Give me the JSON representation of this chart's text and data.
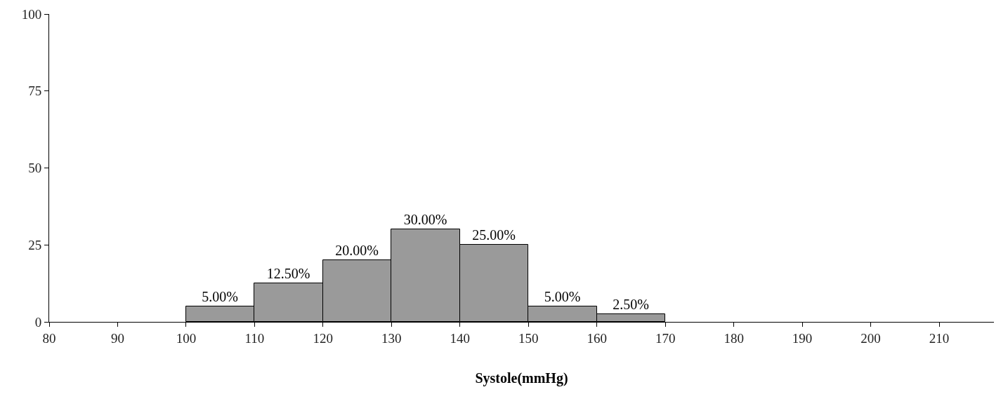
{
  "chart_data": {
    "type": "histogram",
    "xlabel": "Systole(mmHg)",
    "bins": [
      100,
      110,
      120,
      130,
      140,
      150,
      160,
      170
    ],
    "values": [
      5,
      12.5,
      20,
      30,
      25,
      5,
      2.5
    ],
    "value_labels": [
      "5.00%",
      "12.50%",
      "20.00%",
      "30.00%",
      "25.00%",
      "5.00%",
      "2.50%"
    ],
    "color": "#9a9a9a",
    "xlim": [
      80,
      218
    ],
    "xticks": [
      80,
      90,
      100,
      110,
      120,
      130,
      140,
      150,
      160,
      170,
      180,
      190,
      200,
      210
    ],
    "ylim": [
      0,
      100
    ],
    "yticks": [
      0,
      25,
      50,
      75,
      100
    ],
    "grid": false,
    "legend": false
  }
}
